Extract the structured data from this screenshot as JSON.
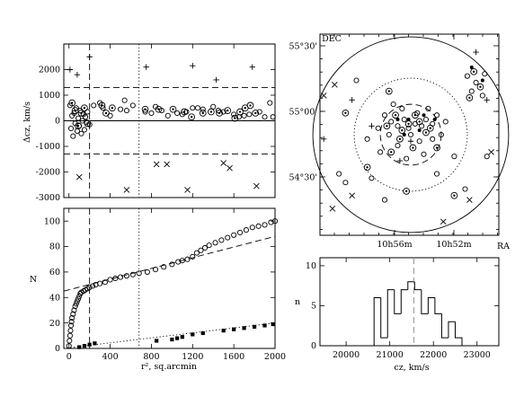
{
  "chart_data": [
    {
      "type": "scatter",
      "panel": "velocity-offset-vs-r2",
      "xlabel": "",
      "ylabel": "Δcz, km/s",
      "xlim": [
        -50,
        2000
      ],
      "ylim": [
        -3000,
        3000
      ],
      "xticks": [
        0,
        400,
        800,
        1200,
        1600,
        2000
      ],
      "yticks": [
        -3000,
        -2000,
        -1000,
        0,
        1000,
        2000
      ],
      "show_xtick_labels": false,
      "hlines": [
        {
          "y": 1300,
          "style": "dashed"
        },
        {
          "y": -1300,
          "style": "dashed"
        },
        {
          "y": 0,
          "style": "solid"
        }
      ],
      "vlines": [
        {
          "x": 200,
          "style": "dashed"
        },
        {
          "x": 680,
          "style": "dotted"
        }
      ],
      "series": [
        {
          "marker": "circle",
          "points": [
            [
              10,
              600
            ],
            [
              20,
              -300
            ],
            [
              30,
              200
            ],
            [
              40,
              -600
            ],
            [
              50,
              300
            ],
            [
              60,
              -100
            ],
            [
              70,
              500
            ],
            [
              80,
              -400
            ],
            [
              90,
              100
            ],
            [
              100,
              -200
            ],
            [
              110,
              400
            ],
            [
              120,
              -500
            ],
            [
              130,
              0
            ],
            [
              140,
              250
            ],
            [
              150,
              -350
            ],
            [
              160,
              150
            ],
            [
              170,
              -50
            ],
            [
              180,
              350
            ],
            [
              200,
              -150
            ],
            [
              240,
              600
            ],
            [
              300,
              700
            ],
            [
              330,
              500
            ],
            [
              400,
              200
            ],
            [
              500,
              450
            ],
            [
              540,
              800
            ],
            [
              560,
              400
            ],
            [
              620,
              600
            ],
            [
              740,
              350
            ],
            [
              800,
              300
            ],
            [
              840,
              550
            ],
            [
              900,
              400
            ],
            [
              960,
              200
            ],
            [
              1050,
              300
            ],
            [
              1100,
              250
            ],
            [
              1140,
              350
            ],
            [
              1200,
              500
            ],
            [
              1250,
              500
            ],
            [
              1300,
              450
            ],
            [
              1400,
              550
            ],
            [
              1450,
              400
            ],
            [
              1500,
              350
            ],
            [
              1600,
              250
            ],
            [
              1650,
              150
            ],
            [
              1700,
              200
            ],
            [
              1750,
              250
            ],
            [
              1850,
              350
            ],
            [
              1900,
              150
            ],
            [
              1950,
              700
            ],
            [
              1980,
              150
            ]
          ]
        },
        {
          "marker": "circle-dot",
          "points": [
            [
              30,
              700
            ],
            [
              60,
              400
            ],
            [
              90,
              -200
            ],
            [
              120,
              300
            ],
            [
              150,
              500
            ],
            [
              180,
              -100
            ],
            [
              320,
              600
            ],
            [
              360,
              300
            ],
            [
              420,
              500
            ],
            [
              740,
              450
            ],
            [
              870,
              450
            ],
            [
              1010,
              450
            ],
            [
              1120,
              350
            ],
            [
              1190,
              150
            ],
            [
              1300,
              300
            ],
            [
              1380,
              350
            ],
            [
              1460,
              300
            ],
            [
              1540,
              400
            ],
            [
              1610,
              100
            ],
            [
              1660,
              350
            ],
            [
              1710,
              500
            ],
            [
              1760,
              600
            ],
            [
              1810,
              300
            ]
          ]
        },
        {
          "marker": "plus",
          "points": [
            [
              10,
              2000
            ],
            [
              80,
              1800
            ],
            [
              200,
              2500
            ],
            [
              750,
              2100
            ],
            [
              1200,
              2150
            ],
            [
              1430,
              1600
            ],
            [
              1780,
              2100
            ]
          ]
        },
        {
          "marker": "cross",
          "points": [
            [
              100,
              -2200
            ],
            [
              560,
              -2700
            ],
            [
              850,
              -1700
            ],
            [
              950,
              -1700
            ],
            [
              1150,
              -2700
            ],
            [
              1500,
              -1650
            ],
            [
              1560,
              -1850
            ],
            [
              1820,
              -2550
            ]
          ]
        }
      ]
    },
    {
      "type": "line",
      "panel": "cumulative-count-vs-r2",
      "xlabel": "r², sq.arcmin",
      "ylabel": "N",
      "xlim": [
        -50,
        2000
      ],
      "ylim": [
        0,
        110
      ],
      "xticks": [
        0,
        400,
        800,
        1200,
        1600,
        2000
      ],
      "yticks": [
        0,
        20,
        40,
        60,
        80,
        100
      ],
      "vlines": [
        {
          "x": 200,
          "style": "dashed"
        },
        {
          "x": 680,
          "style": "dotted"
        }
      ],
      "fit_lines": [
        {
          "style": "dashed",
          "x": [
            -50,
            2000
          ],
          "y": [
            45,
            88
          ]
        },
        {
          "style": "dotted",
          "x": [
            -50,
            2000
          ],
          "y": [
            0,
            20
          ]
        }
      ],
      "series": [
        {
          "marker": "circle",
          "points": [
            [
              0,
              2
            ],
            [
              5,
              6
            ],
            [
              10,
              10
            ],
            [
              15,
              14
            ],
            [
              20,
              18
            ],
            [
              25,
              21
            ],
            [
              30,
              24
            ],
            [
              40,
              27
            ],
            [
              50,
              30
            ],
            [
              60,
              33
            ],
            [
              70,
              35
            ],
            [
              80,
              37
            ],
            [
              90,
              39
            ],
            [
              100,
              41
            ],
            [
              110,
              43
            ],
            [
              120,
              44
            ],
            [
              140,
              45
            ],
            [
              160,
              46
            ],
            [
              180,
              47
            ],
            [
              200,
              48
            ],
            [
              230,
              49
            ],
            [
              260,
              50
            ],
            [
              300,
              51
            ],
            [
              350,
              52
            ],
            [
              400,
              54
            ],
            [
              450,
              55
            ],
            [
              500,
              56
            ],
            [
              560,
              57
            ],
            [
              620,
              58
            ],
            [
              680,
              59
            ],
            [
              760,
              60
            ],
            [
              840,
              62
            ],
            [
              920,
              64
            ],
            [
              1000,
              66
            ],
            [
              1060,
              68
            ],
            [
              1100,
              69
            ],
            [
              1150,
              70
            ],
            [
              1200,
              72
            ],
            [
              1240,
              75
            ],
            [
              1280,
              77
            ],
            [
              1320,
              79
            ],
            [
              1360,
              81
            ],
            [
              1420,
              83
            ],
            [
              1480,
              85
            ],
            [
              1540,
              87
            ],
            [
              1600,
              89
            ],
            [
              1660,
              91
            ],
            [
              1720,
              93
            ],
            [
              1780,
              95
            ],
            [
              1840,
              96
            ],
            [
              1900,
              97
            ],
            [
              1960,
              99
            ],
            [
              2000,
              100
            ]
          ]
        },
        {
          "marker": "square-filled",
          "points": [
            [
              100,
              1
            ],
            [
              150,
              2
            ],
            [
              200,
              3
            ],
            [
              250,
              4
            ],
            [
              850,
              6
            ],
            [
              1000,
              7
            ],
            [
              1050,
              8
            ],
            [
              1100,
              9
            ],
            [
              1200,
              11
            ],
            [
              1300,
              12
            ],
            [
              1500,
              14
            ],
            [
              1600,
              15
            ],
            [
              1700,
              16
            ],
            [
              1800,
              17
            ],
            [
              1900,
              18
            ],
            [
              1980,
              19
            ]
          ]
        }
      ]
    },
    {
      "type": "scatter",
      "panel": "sky-map",
      "xlabel": "RA",
      "ylabel": "DEC",
      "xtick_labels": [
        "10h56m",
        "10h52m"
      ],
      "ytick_labels": [
        "55°30'",
        "55°00'",
        "54°30'"
      ],
      "circles": [
        {
          "style": "solid",
          "radius_arcmin": 45
        },
        {
          "style": "dotted",
          "radius_arcmin": 26
        },
        {
          "style": "dashed",
          "radius_arcmin": 14
        }
      ],
      "series": [
        {
          "marker": "circle",
          "points": [
            [
              -9,
              6
            ],
            [
              -6,
              4
            ],
            [
              -3,
              7
            ],
            [
              -1,
              3
            ],
            [
              2,
              5
            ],
            [
              5,
              4
            ],
            [
              7,
              7
            ],
            [
              10,
              5
            ],
            [
              12,
              9
            ],
            [
              -12,
              9
            ],
            [
              -8,
              14
            ],
            [
              -4,
              12
            ],
            [
              3,
              10
            ],
            [
              8,
              12
            ],
            [
              -15,
              3
            ],
            [
              16,
              6
            ],
            [
              -20,
              -2
            ],
            [
              -10,
              0
            ],
            [
              0,
              0
            ],
            [
              4,
              -3
            ],
            [
              -6,
              -5
            ],
            [
              10,
              -2
            ],
            [
              14,
              0
            ],
            [
              -14,
              -8
            ],
            [
              6,
              -9
            ],
            [
              -2,
              -11
            ],
            [
              20,
              -10
            ],
            [
              28,
              20
            ],
            [
              30,
              24
            ],
            [
              33,
              18
            ],
            [
              26,
              27
            ],
            [
              34,
              28
            ],
            [
              -33,
              -18
            ],
            [
              -30,
              -22
            ],
            [
              25,
              -25
            ],
            [
              -25,
              25
            ],
            [
              -12,
              -30
            ],
            [
              35,
              -10
            ],
            [
              -18,
              -20
            ],
            [
              12,
              -18
            ]
          ]
        },
        {
          "marker": "circle-dot",
          "points": [
            [
              -7,
              9
            ],
            [
              -1,
              5
            ],
            [
              4,
              6
            ],
            [
              9,
              3
            ],
            [
              -4,
              2
            ],
            [
              -11,
              4
            ],
            [
              2,
              9
            ],
            [
              7,
              1
            ],
            [
              -5,
              -2
            ],
            [
              1,
              -6
            ],
            [
              -9,
              -8
            ],
            [
              12,
              -6
            ],
            [
              29,
              29
            ],
            [
              32,
              22
            ],
            [
              27,
              17
            ],
            [
              -10,
              20
            ],
            [
              -20,
              -15
            ],
            [
              -2,
              -26
            ],
            [
              20,
              -28
            ],
            [
              -30,
              10
            ]
          ]
        },
        {
          "marker": "filled-dot",
          "points": [
            [
              -1,
              7
            ],
            [
              4,
              2
            ],
            [
              -6,
              7
            ],
            [
              6,
              9
            ],
            [
              -3,
              0
            ],
            [
              11,
              7
            ],
            [
              28,
              31
            ],
            [
              33,
              25
            ]
          ]
        },
        {
          "marker": "plus",
          "points": [
            [
              0,
              -3
            ],
            [
              -18,
              4
            ],
            [
              -40,
              -2
            ],
            [
              -5,
              -12
            ],
            [
              30,
              38
            ],
            [
              35,
              16
            ],
            [
              -27,
              16
            ]
          ]
        },
        {
          "marker": "cross",
          "points": [
            [
              -40,
              18
            ],
            [
              -35,
              23
            ],
            [
              -27,
              -28
            ],
            [
              -36,
              -34
            ],
            [
              27,
              -30
            ],
            [
              15,
              -40
            ],
            [
              37,
              -8
            ]
          ]
        }
      ]
    },
    {
      "type": "histogram",
      "panel": "velocity-distribution",
      "xlabel": "cz,  km/s",
      "ylabel": "n",
      "xlim": [
        19400,
        23500
      ],
      "ylim": [
        0,
        11
      ],
      "xticks": [
        20000,
        21000,
        22000,
        23000
      ],
      "yticks": [
        0,
        5,
        10
      ],
      "bin_edges": [
        20640,
        20795,
        20950,
        21105,
        21260,
        21415,
        21570,
        21725,
        21880,
        22035,
        22190,
        22345,
        22500,
        22655
      ],
      "counts": [
        6,
        1,
        7,
        4,
        7,
        8,
        7,
        4,
        6,
        4,
        1,
        3,
        1
      ],
      "marker_line": {
        "x": 21550,
        "style": "dashed"
      }
    }
  ]
}
